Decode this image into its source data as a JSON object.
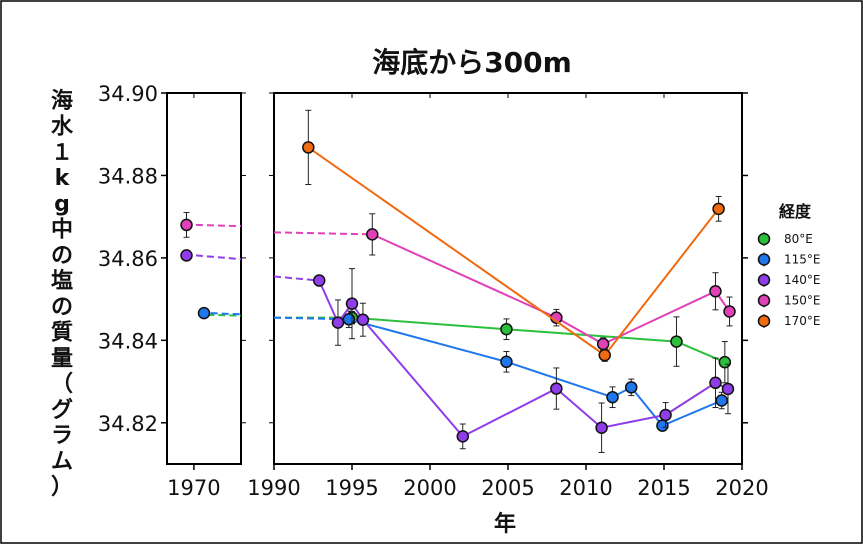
{
  "chart_data": {
    "type": "line",
    "title": "海底から300m",
    "xlabel": "年",
    "ylabel": "海水１kg中の塩の質量（グラム）",
    "ylim": [
      34.81,
      34.9
    ],
    "y_ticks": [
      "34.82",
      "34.84",
      "34.86",
      "34.88",
      "34.90"
    ],
    "left_panel": {
      "xlim": [
        1966,
        1977
      ],
      "x_ticks": [
        "1970"
      ]
    },
    "right_panel": {
      "xlim": [
        1990,
        2020
      ],
      "x_ticks": [
        "1990",
        "1995",
        "2000",
        "2005",
        "2010",
        "2015",
        "2020"
      ]
    },
    "legend": {
      "title": "経度",
      "placement": "right"
    },
    "series": [
      {
        "name": "80°E",
        "color": "#2bbf3c",
        "values": [
          [
            1995.0,
            34.8455,
            0.0015
          ],
          [
            2004.9,
            34.8427,
            0.0025
          ],
          [
            2015.8,
            34.8397,
            0.006
          ],
          [
            2018.9,
            34.8347,
            0.005
          ]
        ],
        "dashed_from": [
          [
            1990,
            34.8455
          ],
          [
            1995.0,
            34.8455
          ]
        ]
      },
      {
        "name": "115°E",
        "color": "#1f77ee",
        "values": [
          [
            1971.5,
            34.8466,
            0.001
          ],
          [
            1994.8,
            34.8451,
            0.002
          ],
          [
            2004.9,
            34.8348,
            0.0025
          ],
          [
            2011.7,
            34.8262,
            0.0025
          ],
          [
            2012.9,
            34.8286,
            0.002
          ],
          [
            2014.9,
            34.8193,
            0.001
          ],
          [
            2018.7,
            34.8254,
            0.002
          ]
        ],
        "dashed_from": [
          [
            1990,
            34.8455
          ],
          [
            1994.8,
            34.8451
          ]
        ]
      },
      {
        "name": "140°E",
        "color": "#8f3de8",
        "values": [
          [
            1968.9,
            34.8606,
            0.0005
          ],
          [
            1992.9,
            34.8545,
            0.001
          ],
          [
            1994.1,
            34.8443,
            0.0055
          ],
          [
            1995.0,
            34.8489,
            0.0085
          ],
          [
            1995.7,
            34.845,
            0.004
          ],
          [
            2002.1,
            34.8167,
            0.003
          ],
          [
            2008.1,
            34.8283,
            0.005
          ],
          [
            2011.0,
            34.8188,
            0.006
          ],
          [
            2015.1,
            34.8219,
            0.003
          ],
          [
            2018.3,
            34.8297,
            0.006
          ],
          [
            2019.1,
            34.8282,
            0.006
          ]
        ],
        "dashed_from": [
          [
            1990,
            34.8555
          ],
          [
            1992.9,
            34.8545
          ]
        ]
      },
      {
        "name": "150°E",
        "color": "#e040b8",
        "values": [
          [
            1968.9,
            34.868,
            0.003
          ],
          [
            1996.3,
            34.8657,
            0.005
          ],
          [
            2008.1,
            34.8455,
            0.002
          ],
          [
            2011.1,
            34.8391,
            0.0015
          ],
          [
            2018.3,
            34.8519,
            0.0045
          ],
          [
            2019.2,
            34.847,
            0.0035
          ]
        ],
        "dashed_from": [
          [
            1990,
            34.8662
          ],
          [
            1996.3,
            34.8657
          ]
        ]
      },
      {
        "name": "170°E",
        "color": "#f06a10",
        "values": [
          [
            1992.2,
            34.8868,
            0.009
          ],
          [
            2011.2,
            34.8364,
            0.0015
          ],
          [
            2018.5,
            34.8719,
            0.003
          ]
        ],
        "dashed_from": null
      }
    ],
    "grid": false
  }
}
